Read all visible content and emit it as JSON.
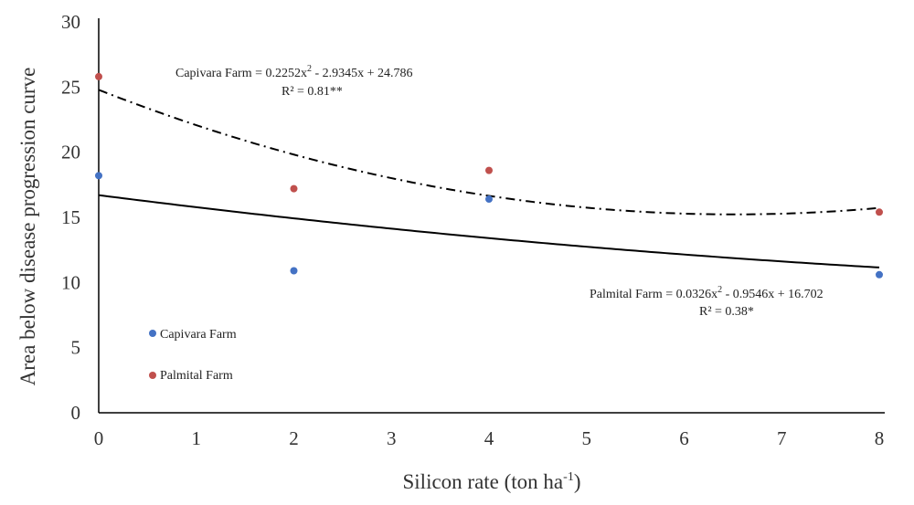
{
  "chart_data": {
    "type": "scatter",
    "xlabel": "Silicon rate (ton ha",
    "xlabel_sup": "-1",
    "xlabel_end": ")",
    "ylabel": "Area below disease progression curve",
    "xlim": [
      0,
      8
    ],
    "ylim": [
      0,
      30
    ],
    "xticks": [
      0,
      1,
      2,
      3,
      4,
      5,
      6,
      7,
      8
    ],
    "yticks": [
      0,
      5,
      10,
      15,
      20,
      25,
      30
    ],
    "grid": false,
    "legend_position": "bottom-left",
    "series": [
      {
        "name": "Capivara Farm",
        "color": "#4472c4",
        "points": [
          [
            0,
            18.2
          ],
          [
            2,
            10.9
          ],
          [
            4,
            16.4
          ],
          [
            8,
            10.6
          ]
        ]
      },
      {
        "name": "Palmital Farm",
        "color": "#c0504d",
        "points": [
          [
            0,
            25.8
          ],
          [
            2,
            17.2
          ],
          [
            4,
            18.6
          ],
          [
            8,
            15.4
          ]
        ]
      }
    ],
    "trendlines": [
      {
        "label": "Capivara Farm",
        "style": "dash-dot",
        "coefficients": {
          "a": 0.2252,
          "b": -2.9345,
          "c": 24.786
        },
        "equation_prefix": "Capivara Farm = 0.2252x",
        "equation_suffix": "  - 2.9345x  + 24.786",
        "r2": "R² = 0.81**"
      },
      {
        "label": "Palmital Farm",
        "style": "solid",
        "coefficients": {
          "a": 0.0326,
          "b": -0.9546,
          "c": 16.702
        },
        "equation_prefix": "Palmital Farm = 0.0326x",
        "equation_suffix": "  - 0.9546x  + 16.702",
        "r2": "R² = 0.38*"
      }
    ],
    "legend": [
      {
        "label": "Capivara Farm",
        "color": "#4472c4"
      },
      {
        "label": "Palmital Farm",
        "color": "#c0504d"
      }
    ]
  }
}
